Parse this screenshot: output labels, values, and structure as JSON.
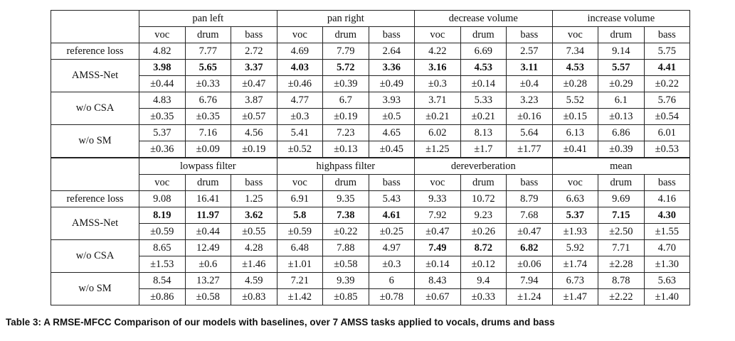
{
  "sections": [
    {
      "groups": [
        "pan left",
        "pan right",
        "decrease volume",
        "increase volume"
      ],
      "sub": [
        "voc",
        "drum",
        "bass"
      ],
      "rows": [
        {
          "label": "reference loss",
          "vals": [
            "4.82",
            "7.77",
            "2.72",
            "4.69",
            "7.79",
            "2.64",
            "4.22",
            "6.69",
            "2.57",
            "7.34",
            "9.14",
            "5.75"
          ],
          "bold": []
        },
        {
          "label": "AMSS-Net",
          "vals": [
            "3.98",
            "5.65",
            "3.37",
            "4.03",
            "5.72",
            "3.36",
            "3.16",
            "4.53",
            "3.11",
            "4.53",
            "5.57",
            "4.41"
          ],
          "std": [
            "±0.44",
            "±0.33",
            "±0.47",
            "±0.46",
            "±0.39",
            "±0.49",
            "±0.3",
            "±0.14",
            "±0.4",
            "±0.28",
            "±0.29",
            "±0.22"
          ],
          "bold": [
            0,
            1,
            2,
            3,
            4,
            5,
            6,
            7,
            8,
            9,
            10,
            11
          ]
        },
        {
          "label": "w/o CSA",
          "vals": [
            "4.83",
            "6.76",
            "3.87",
            "4.77",
            "6.7",
            "3.93",
            "3.71",
            "5.33",
            "3.23",
            "5.52",
            "6.1",
            "5.76"
          ],
          "std": [
            "±0.35",
            "±0.35",
            "±0.57",
            "±0.3",
            "±0.19",
            "±0.5",
            "±0.21",
            "±0.21",
            "±0.16",
            "±0.15",
            "±0.13",
            "±0.54"
          ],
          "bold": []
        },
        {
          "label": "w/o SM",
          "vals": [
            "5.37",
            "7.16",
            "4.56",
            "5.41",
            "7.23",
            "4.65",
            "6.02",
            "8.13",
            "5.64",
            "6.13",
            "6.86",
            "6.01"
          ],
          "std": [
            "±0.36",
            "±0.09",
            "±0.19",
            "±0.52",
            "±0.13",
            "±0.45",
            "±1.25",
            "±1.7",
            "±1.77",
            "±0.41",
            "±0.39",
            "±0.53"
          ],
          "bold": []
        }
      ]
    },
    {
      "groups": [
        "lowpass filter",
        "highpass filter",
        "dereverberation",
        "mean"
      ],
      "sub": [
        "voc",
        "drum",
        "bass"
      ],
      "rows": [
        {
          "label": "reference loss",
          "vals": [
            "9.08",
            "16.41",
            "1.25",
            "6.91",
            "9.35",
            "5.43",
            "9.33",
            "10.72",
            "8.79",
            "6.63",
            "9.69",
            "4.16"
          ],
          "bold": []
        },
        {
          "label": "AMSS-Net",
          "vals": [
            "8.19",
            "11.97",
            "3.62",
            "5.8",
            "7.38",
            "4.61",
            "7.92",
            "9.23",
            "7.68",
            "5.37",
            "7.15",
            "4.30"
          ],
          "std": [
            "±0.59",
            "±0.44",
            "±0.55",
            "±0.59",
            "±0.22",
            "±0.25",
            "±0.47",
            "±0.26",
            "±0.47",
            "±1.93",
            "±2.50",
            "±1.55"
          ],
          "bold": [
            0,
            1,
            2,
            3,
            4,
            5,
            9,
            10,
            11
          ]
        },
        {
          "label": "w/o CSA",
          "vals": [
            "8.65",
            "12.49",
            "4.28",
            "6.48",
            "7.88",
            "4.97",
            "7.49",
            "8.72",
            "6.82",
            "5.92",
            "7.71",
            "4.70"
          ],
          "std": [
            "±1.53",
            "±0.6",
            "±1.46",
            "±1.01",
            "±0.58",
            "±0.3",
            "±0.14",
            "±0.12",
            "±0.06",
            "±1.74",
            "±2.28",
            "±1.30"
          ],
          "bold": [
            6,
            7,
            8
          ]
        },
        {
          "label": "w/o SM",
          "vals": [
            "8.54",
            "13.27",
            "4.59",
            "7.21",
            "9.39",
            "6",
            "8.43",
            "9.4",
            "7.94",
            "6.73",
            "8.78",
            "5.63"
          ],
          "std": [
            "±0.86",
            "±0.58",
            "±0.83",
            "±1.42",
            "±0.85",
            "±0.78",
            "±0.67",
            "±0.33",
            "±1.24",
            "±1.47",
            "±2.22",
            "±1.40"
          ],
          "bold": []
        }
      ]
    }
  ],
  "caption": "Table 3: A RMSE-MFCC Comparison of our models with baselines, over 7 AMSS tasks applied to vocals, drums and bass"
}
